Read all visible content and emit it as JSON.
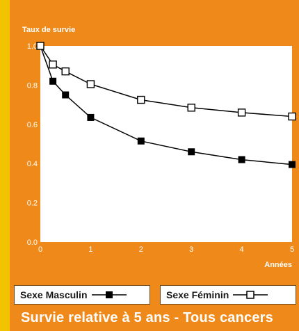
{
  "chart_data": {
    "type": "line",
    "title": "",
    "ylabel": "Taux de survie",
    "xlabel": "Années",
    "x": [
      0,
      0.25,
      0.5,
      1,
      2,
      3,
      4,
      5
    ],
    "xticks": [
      0,
      1,
      2,
      3,
      4,
      5
    ],
    "yticks": [
      0.0,
      0.2,
      0.4,
      0.6,
      0.8,
      1.0
    ],
    "ytick_labels": [
      "0.0",
      "0.2",
      "0.4",
      "0.6",
      "0.8",
      "1.0"
    ],
    "xlim": [
      0,
      5
    ],
    "ylim": [
      0,
      1.0
    ],
    "grid": false,
    "series": [
      {
        "name": "Sexe Masculin",
        "marker": "filled-square",
        "color": "#000000",
        "values": [
          1.0,
          0.82,
          0.75,
          0.635,
          0.515,
          0.46,
          0.42,
          0.395
        ]
      },
      {
        "name": "Sexe Féminin",
        "marker": "open-square",
        "color": "#000000",
        "values": [
          1.0,
          0.905,
          0.87,
          0.805,
          0.725,
          0.685,
          0.66,
          0.64
        ]
      }
    ]
  },
  "caption": "Survie relative à 5 ans - Tous cancers",
  "colors": {
    "background": "#f2c400",
    "panel": "#ef8a1a",
    "plot": "#ffffff",
    "text_light": "#ffffff"
  }
}
